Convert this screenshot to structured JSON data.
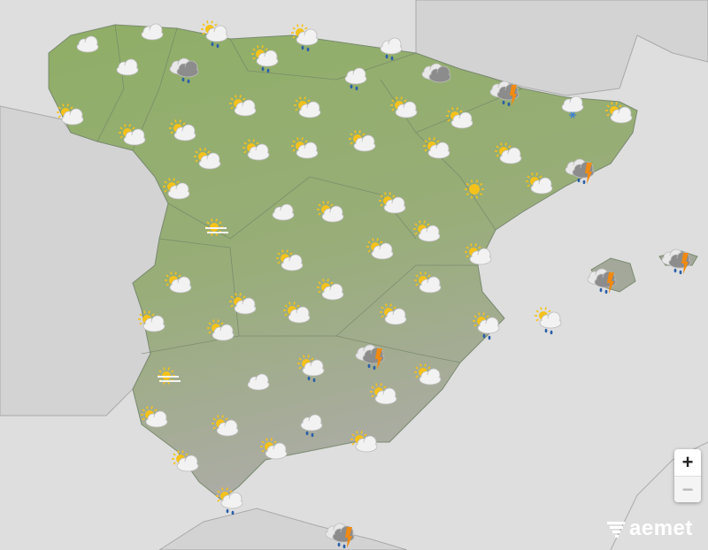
{
  "map": {
    "region": "España",
    "colors": {
      "sea": "#dedede",
      "land_outside": "#d2d2d2",
      "spain_north": "#8fae66",
      "spain_south": "#a9a9a1",
      "sun": "#f5c21b",
      "cloud": "#f2f2f2",
      "dark_cloud": "#8c8c8c",
      "rain": "#2c5fa8",
      "lightning": "#f08a12",
      "snow": "#3c7fd6"
    }
  },
  "weather_icons": [
    "cloud",
    "cloud",
    "sun-cloud-rain",
    "sun-cloud-rain",
    "cloud-rain",
    "cloud",
    "dark-cloud-rain",
    "sun-cloud-rain",
    "cloud-rain",
    "dark-cloud",
    "storm",
    "snow",
    "sun-cloud",
    "sun-cloud",
    "sun-cloud",
    "sun-cloud",
    "sun-cloud",
    "sun-cloud",
    "sun-cloud",
    "sun-cloud",
    "sun-cloud",
    "sun-cloud",
    "sun-cloud",
    "sun-cloud",
    "sun-cloud",
    "sun-cloud",
    "storm",
    "sun-cloud",
    "sun-cloud",
    "sun",
    "cloud",
    "sun-cloud",
    "sun-cloud",
    "sun-fog",
    "sun-cloud",
    "sun-cloud",
    "sun-cloud",
    "sun-cloud",
    "sun-cloud",
    "sun-cloud",
    "sun-cloud",
    "sun-cloud",
    "sun-cloud",
    "sun-cloud",
    "sun-cloud",
    "sun-cloud",
    "sun-cloud-rain",
    "sun-cloud-rain",
    "storm",
    "storm",
    "storm",
    "sun-cloud-rain",
    "sun-cloud",
    "sun-fog",
    "cloud",
    "sun-cloud",
    "sun-cloud",
    "sun-cloud",
    "cloud-rain",
    "sun-cloud",
    "sun-cloud",
    "sun-cloud",
    "sun-cloud-rain",
    "storm"
  ],
  "controls": {
    "zoom_in": "+",
    "zoom_out": "−"
  },
  "logo": {
    "text": "aemet"
  }
}
